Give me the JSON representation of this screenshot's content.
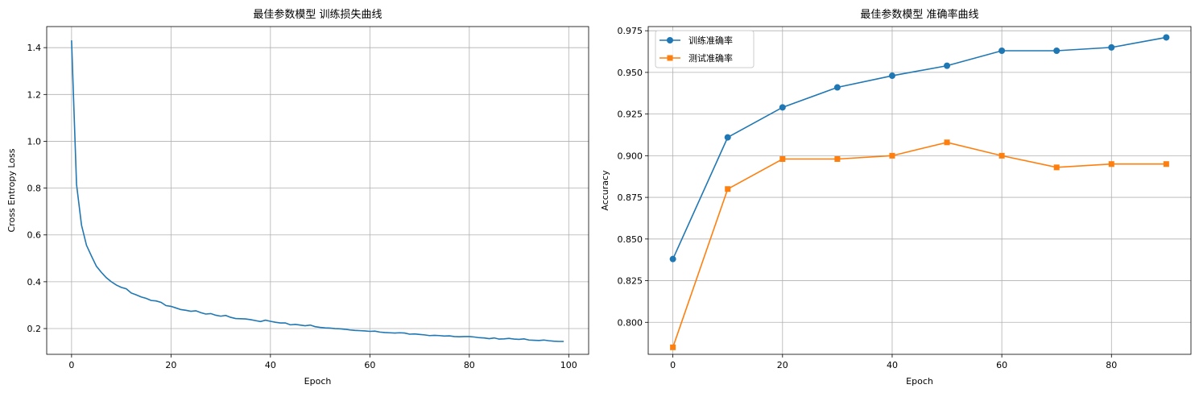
{
  "chart_data": [
    {
      "type": "line",
      "title": "最佳参数模型 训练损失曲线",
      "xlabel": "Epoch",
      "ylabel": "Cross Entropy Loss",
      "xlim": [
        -5,
        104
      ],
      "ylim": [
        0.09,
        1.49
      ],
      "xticks": [
        0,
        20,
        40,
        60,
        80,
        100
      ],
      "xtick_labels": [
        "0",
        "20",
        "40",
        "60",
        "80",
        "100"
      ],
      "yticks": [
        0.2,
        0.4,
        0.6,
        0.8,
        1.0,
        1.2,
        1.4
      ],
      "ytick_labels": [
        "0.2",
        "0.4",
        "0.6",
        "0.8",
        "1.0",
        "1.2",
        "1.4"
      ],
      "grid": true,
      "series": [
        {
          "name": "loss",
          "color": "#1f77b4",
          "values": [
            1.431,
            0.816,
            0.642,
            0.556,
            0.51,
            0.466,
            0.44,
            0.417,
            0.4,
            0.386,
            0.376,
            0.37,
            0.352,
            0.344,
            0.335,
            0.329,
            0.32,
            0.318,
            0.312,
            0.298,
            0.295,
            0.288,
            0.281,
            0.278,
            0.274,
            0.276,
            0.268,
            0.262,
            0.264,
            0.257,
            0.253,
            0.256,
            0.248,
            0.243,
            0.242,
            0.241,
            0.238,
            0.234,
            0.23,
            0.236,
            0.231,
            0.227,
            0.224,
            0.224,
            0.216,
            0.218,
            0.215,
            0.212,
            0.215,
            0.208,
            0.205,
            0.203,
            0.202,
            0.2,
            0.199,
            0.197,
            0.194,
            0.192,
            0.191,
            0.19,
            0.188,
            0.189,
            0.185,
            0.183,
            0.182,
            0.181,
            0.182,
            0.181,
            0.176,
            0.177,
            0.175,
            0.173,
            0.17,
            0.171,
            0.17,
            0.168,
            0.169,
            0.166,
            0.165,
            0.166,
            0.166,
            0.164,
            0.161,
            0.16,
            0.157,
            0.16,
            0.155,
            0.156,
            0.158,
            0.155,
            0.154,
            0.156,
            0.151,
            0.15,
            0.149,
            0.151,
            0.148,
            0.146,
            0.145,
            0.145
          ]
        }
      ]
    },
    {
      "type": "line",
      "title": "最佳参数模型 准确率曲线",
      "xlabel": "Epoch",
      "ylabel": "Accuracy",
      "xlim": [
        -4.5,
        94.5
      ],
      "ylim": [
        0.7808,
        0.9775
      ],
      "xticks": [
        0,
        20,
        40,
        60,
        80
      ],
      "xtick_labels": [
        "0",
        "20",
        "40",
        "60",
        "80"
      ],
      "yticks": [
        0.8,
        0.825,
        0.85,
        0.875,
        0.9,
        0.925,
        0.95,
        0.975
      ],
      "ytick_labels": [
        "0.800",
        "0.825",
        "0.850",
        "0.875",
        "0.900",
        "0.925",
        "0.950",
        "0.975"
      ],
      "grid": true,
      "legend": "top-left",
      "x": [
        0,
        10,
        20,
        30,
        40,
        50,
        60,
        70,
        80,
        90
      ],
      "series": [
        {
          "name": "训练准确率",
          "color": "#1f77b4",
          "marker": "circle",
          "values": [
            0.838,
            0.911,
            0.929,
            0.941,
            0.948,
            0.954,
            0.963,
            0.963,
            0.965,
            0.971
          ]
        },
        {
          "name": "测试准确率",
          "color": "#ff7f0e",
          "marker": "square",
          "values": [
            0.785,
            0.88,
            0.898,
            0.898,
            0.9,
            0.908,
            0.9,
            0.893,
            0.895,
            0.895
          ]
        }
      ]
    }
  ]
}
